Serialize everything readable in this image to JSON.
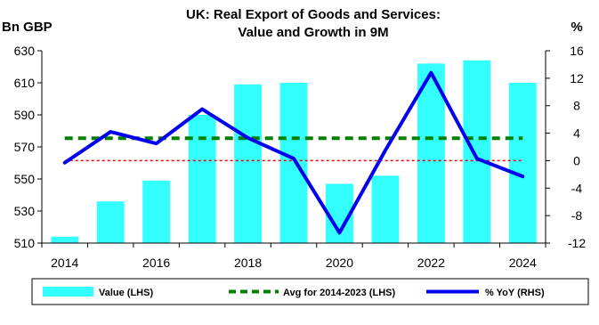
{
  "chart_data": {
    "type": "bar",
    "title_line1": "UK: Real Export of Goods and Services:",
    "title_line2": "Value and Growth in 9M",
    "y_left_label": "Bn GBP",
    "y_right_label": "%",
    "x": [
      2014,
      2015,
      2016,
      2017,
      2018,
      2019,
      2020,
      2021,
      2022,
      2023,
      2024
    ],
    "x_ticks": [
      2014,
      2016,
      2018,
      2020,
      2022,
      2024
    ],
    "y_left_ticks": [
      510,
      530,
      550,
      570,
      590,
      610,
      630
    ],
    "y_left_lim": [
      510,
      630
    ],
    "y_right_ticks": [
      -12,
      -8,
      -4,
      0,
      4,
      8,
      12,
      16
    ],
    "y_right_lim": [
      -12,
      16
    ],
    "grid": false,
    "legend_position": "bottom",
    "series": [
      {
        "name": "Value (LHS)",
        "type": "bar",
        "axis": "left",
        "color": "#33FFFF",
        "values": [
          514,
          536,
          549,
          590,
          609,
          610,
          547,
          552,
          622,
          624,
          610
        ]
      },
      {
        "name": "Avg for 2014-2023 (LHS)",
        "type": "line",
        "style": "dashed",
        "axis": "left",
        "color": "#008000",
        "values": [
          575.4,
          575.4,
          575.4,
          575.4,
          575.4,
          575.4,
          575.4,
          575.4,
          575.4,
          575.4,
          575.4
        ]
      },
      {
        "name": "% YoY (RHS)",
        "type": "line",
        "axis": "right",
        "color": "#0000EE",
        "values": [
          -0.3,
          4.2,
          2.5,
          7.5,
          3.3,
          0.3,
          -10.5,
          1.5,
          12.8,
          0.3,
          -2.3
        ]
      }
    ],
    "reference_line": {
      "axis": "right",
      "value": 0,
      "color": "#FF0000",
      "style": "dotted"
    }
  }
}
